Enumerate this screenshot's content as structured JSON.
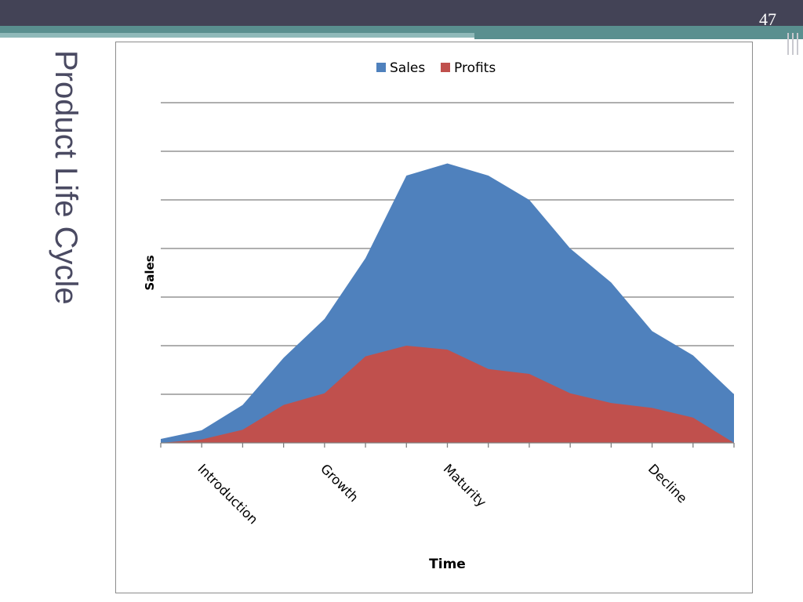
{
  "slide": {
    "number": "47",
    "title": "Product Life Cycle"
  },
  "colors": {
    "sales": "#4f81bd",
    "profits": "#c0504d",
    "gridline": "#7f7f7f",
    "header": "#434356",
    "accent": "#5a8f8f"
  },
  "chart_data": {
    "type": "area",
    "title": "",
    "xlabel": "Time",
    "ylabel": "Sales",
    "legend_position": "top",
    "grid": true,
    "ylim": [
      0,
      7
    ],
    "x_points": 15,
    "stage_labels": [
      {
        "label": "Introduction",
        "index": 1
      },
      {
        "label": "Growth",
        "index": 4
      },
      {
        "label": "Maturity",
        "index": 7
      },
      {
        "label": "Decline",
        "index": 12
      }
    ],
    "series": [
      {
        "name": "Sales",
        "values": [
          0.08,
          0.26,
          0.78,
          1.75,
          2.55,
          3.8,
          5.5,
          5.75,
          5.5,
          5.0,
          4.0,
          3.3,
          2.3,
          1.8,
          1.0
        ]
      },
      {
        "name": "Profits",
        "values": [
          0.0,
          0.07,
          0.27,
          0.78,
          1.02,
          1.78,
          2.0,
          1.92,
          1.52,
          1.42,
          1.02,
          0.82,
          0.72,
          0.52,
          0.0
        ]
      }
    ]
  }
}
